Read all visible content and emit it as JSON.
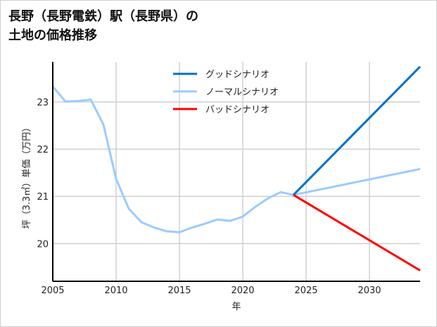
{
  "title_line1": "長野（長野電鉄）駅（長野県）の",
  "title_line2": "土地の価格推移",
  "chart_data": {
    "type": "line",
    "title": "長野（長野電鉄）駅（長野県）の土地の価格推移",
    "xlabel": "年",
    "ylabel": "坪（3.3㎡）単価（万円）",
    "xlim": [
      2005,
      2034
    ],
    "ylim": [
      19.2,
      23.85
    ],
    "xticks": [
      2005,
      2010,
      2015,
      2020,
      2025,
      2030
    ],
    "yticks": [
      20,
      21,
      22,
      23
    ],
    "grid": true,
    "legend_position": "top-center",
    "series": [
      {
        "name": "グッドシナリオ",
        "color": "#0070c8",
        "x": [
          2024,
          2034
        ],
        "y": [
          21.03,
          23.75
        ]
      },
      {
        "name": "ノーマルシナリオ",
        "color": "#99ccff",
        "x": [
          2005,
          2006,
          2007,
          2008,
          2009,
          2010,
          2011,
          2012,
          2013,
          2014,
          2015,
          2016,
          2017,
          2018,
          2019,
          2020,
          2021,
          2022,
          2023,
          2024,
          2034
        ],
        "y": [
          23.33,
          23.01,
          23.02,
          23.05,
          22.52,
          21.37,
          20.74,
          20.45,
          20.34,
          20.26,
          20.24,
          20.34,
          20.42,
          20.51,
          20.48,
          20.57,
          20.78,
          20.96,
          21.09,
          21.03,
          21.58
        ]
      },
      {
        "name": "バッドシナリオ",
        "color": "#ff0000",
        "x": [
          2024,
          2034
        ],
        "y": [
          21.03,
          19.43
        ]
      }
    ]
  }
}
